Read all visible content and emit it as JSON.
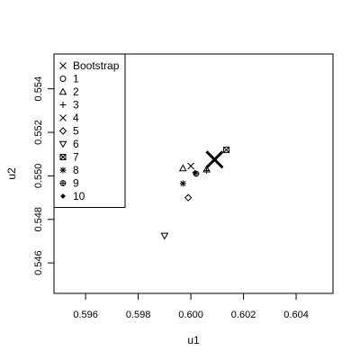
{
  "chart_data": {
    "type": "scatter",
    "xlabel": "u1",
    "ylabel": "u2",
    "xlim": [
      0.5948,
      0.6054
    ],
    "ylim": [
      0.5446,
      0.5556
    ],
    "x_ticks": [
      {
        "value": 0.596,
        "label": "0.596"
      },
      {
        "value": 0.598,
        "label": "0.598"
      },
      {
        "value": 0.6,
        "label": "0.600"
      },
      {
        "value": 0.602,
        "label": "0.602"
      },
      {
        "value": 0.604,
        "label": "0.604"
      }
    ],
    "y_ticks": [
      {
        "value": 0.546,
        "label": "0.546"
      },
      {
        "value": 0.548,
        "label": "0.548"
      },
      {
        "value": 0.55,
        "label": "0.550"
      },
      {
        "value": 0.552,
        "label": "0.552"
      },
      {
        "value": 0.554,
        "label": "0.554"
      }
    ],
    "legend_position": "top-left",
    "grid": false,
    "series": [
      {
        "name": "Bootstrap",
        "symbol": "x",
        "size": "large",
        "points": [
          [
            0.6009,
            0.55075
          ]
        ]
      },
      {
        "name": "1",
        "symbol": "circle",
        "size": "normal",
        "points": []
      },
      {
        "name": "2",
        "symbol": "triangle-up",
        "size": "normal",
        "points": [
          [
            0.5997,
            0.55035
          ],
          [
            0.6006,
            0.5503
          ]
        ]
      },
      {
        "name": "3",
        "symbol": "plus",
        "size": "normal",
        "points": [
          [
            0.6006,
            0.55025
          ]
        ]
      },
      {
        "name": "4",
        "symbol": "x",
        "size": "normal",
        "points": [
          [
            0.6,
            0.55045
          ]
        ]
      },
      {
        "name": "5",
        "symbol": "diamond",
        "size": "normal",
        "points": [
          [
            0.5999,
            0.549
          ]
        ]
      },
      {
        "name": "6",
        "symbol": "triangle-down",
        "size": "normal",
        "points": [
          [
            0.599,
            0.54725
          ]
        ]
      },
      {
        "name": "7",
        "symbol": "square-x",
        "size": "normal",
        "points": [
          [
            0.60135,
            0.5512
          ]
        ]
      },
      {
        "name": "8",
        "symbol": "asterisk",
        "size": "normal",
        "points": [
          [
            0.5997,
            0.54965
          ]
        ]
      },
      {
        "name": "9",
        "symbol": "circle-plus",
        "size": "normal",
        "points": [
          [
            0.6002,
            0.5501
          ]
        ]
      },
      {
        "name": "10",
        "symbol": "plus-dot",
        "size": "normal",
        "points": [
          [
            0.60015,
            0.55015
          ]
        ]
      }
    ]
  }
}
